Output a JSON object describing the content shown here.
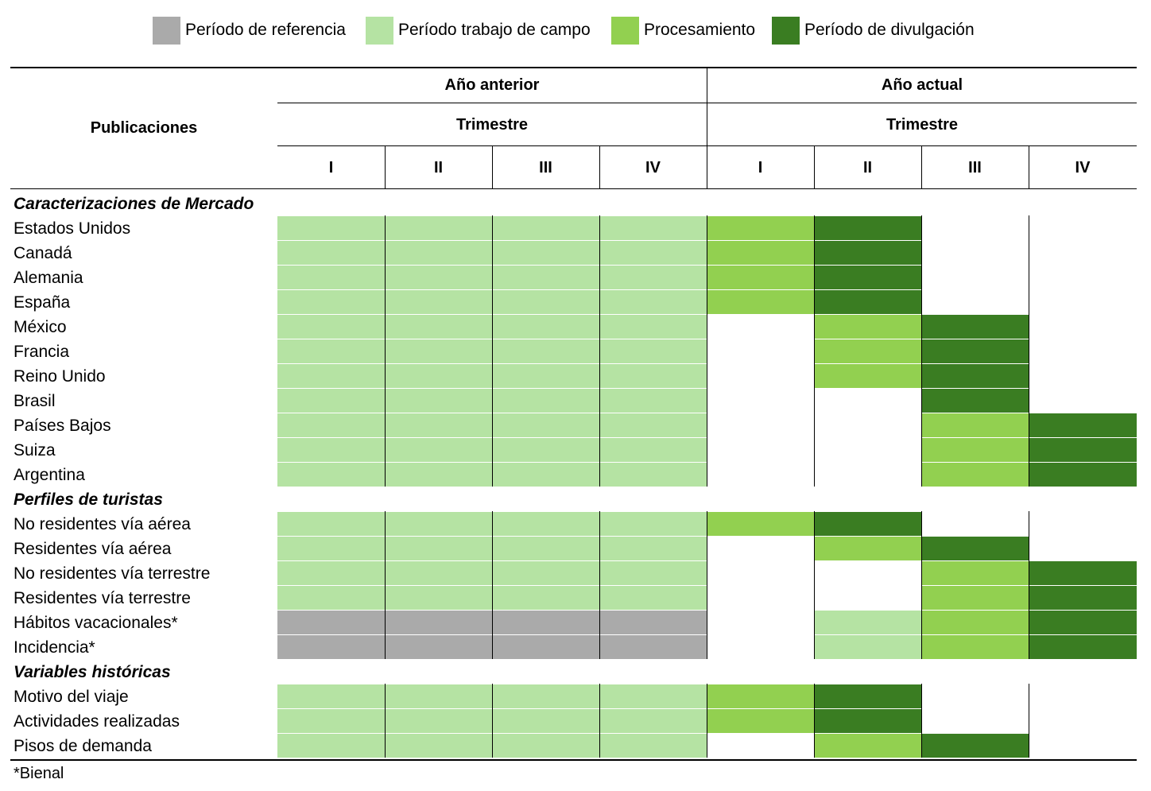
{
  "legend": [
    {
      "label": "Período de referencia",
      "color": "#aaaaaa"
    },
    {
      "label": "Período trabajo de campo",
      "color": "#b5e3a3"
    },
    {
      "label": "Procesamiento",
      "color": "#92d050"
    },
    {
      "label": "Período de divulgación",
      "color": "#3a7d22"
    }
  ],
  "header": {
    "publicaciones": "Publicaciones",
    "year_prev": "Año anterior",
    "year_curr": "Año actual",
    "trimestre": "Trimestre",
    "quarters": [
      "I",
      "II",
      "III",
      "IV",
      "I",
      "II",
      "III",
      "IV"
    ]
  },
  "colors": {
    "R": "#aaaaaa",
    "C": "#b5e3a3",
    "P": "#92d050",
    "D": "#3a7d22",
    "": "#ffffff"
  },
  "rows": [
    {
      "label": "Caracterizaciones de Mercado",
      "section": true
    },
    {
      "label": "Estados Unidos",
      "cells": [
        "C",
        "C",
        "C",
        "C",
        "P",
        "D",
        "",
        ""
      ]
    },
    {
      "label": "Canadá",
      "cells": [
        "C",
        "C",
        "C",
        "C",
        "P",
        "D",
        "",
        ""
      ]
    },
    {
      "label": "Alemania",
      "cells": [
        "C",
        "C",
        "C",
        "C",
        "P",
        "D",
        "",
        ""
      ]
    },
    {
      "label": "España",
      "cells": [
        "C",
        "C",
        "C",
        "C",
        "P",
        "D",
        "",
        ""
      ]
    },
    {
      "label": "México",
      "cells": [
        "C",
        "C",
        "C",
        "C",
        "",
        "P",
        "D",
        ""
      ]
    },
    {
      "label": "Francia",
      "cells": [
        "C",
        "C",
        "C",
        "C",
        "",
        "P",
        "D",
        ""
      ]
    },
    {
      "label": "Reino Unido",
      "cells": [
        "C",
        "C",
        "C",
        "C",
        "",
        "P",
        "D",
        ""
      ]
    },
    {
      "label": "Brasil",
      "cells": [
        "C",
        "C",
        "C",
        "C",
        "",
        "",
        "D",
        ""
      ]
    },
    {
      "label": "Países Bajos",
      "cells": [
        "C",
        "C",
        "C",
        "C",
        "",
        "",
        "P",
        "D"
      ]
    },
    {
      "label": "Suiza",
      "cells": [
        "C",
        "C",
        "C",
        "C",
        "",
        "",
        "P",
        "D"
      ]
    },
    {
      "label": "Argentina",
      "cells": [
        "C",
        "C",
        "C",
        "C",
        "",
        "",
        "P",
        "D"
      ]
    },
    {
      "label": "Perfiles de turistas",
      "section": true
    },
    {
      "label": "No residentes vía aérea",
      "cells": [
        "C",
        "C",
        "C",
        "C",
        "P",
        "D",
        "",
        ""
      ]
    },
    {
      "label": "Residentes vía aérea",
      "cells": [
        "C",
        "C",
        "C",
        "C",
        "",
        "P",
        "D",
        ""
      ]
    },
    {
      "label": "No residentes vía terrestre",
      "cells": [
        "C",
        "C",
        "C",
        "C",
        "",
        "",
        "P",
        "D"
      ]
    },
    {
      "label": "Residentes vía terrestre",
      "cells": [
        "C",
        "C",
        "C",
        "C",
        "",
        "",
        "P",
        "D"
      ]
    },
    {
      "label": "Hábitos vacacionales*",
      "cells": [
        "R",
        "R",
        "R",
        "R",
        "",
        "C",
        "P",
        "D"
      ]
    },
    {
      "label": "Incidencia*",
      "cells": [
        "R",
        "R",
        "R",
        "R",
        "",
        "C",
        "P",
        "D"
      ]
    },
    {
      "label": "Variables históricas",
      "section": true
    },
    {
      "label": "Motivo del viaje",
      "cells": [
        "C",
        "C",
        "C",
        "C",
        "P",
        "D",
        "",
        ""
      ]
    },
    {
      "label": "Actividades realizadas",
      "cells": [
        "C",
        "C",
        "C",
        "C",
        "P",
        "D",
        "",
        ""
      ]
    },
    {
      "label": "Pisos de demanda",
      "cells": [
        "C",
        "C",
        "C",
        "C",
        "",
        "P",
        "D",
        ""
      ]
    }
  ],
  "footnote": "*Bienal"
}
